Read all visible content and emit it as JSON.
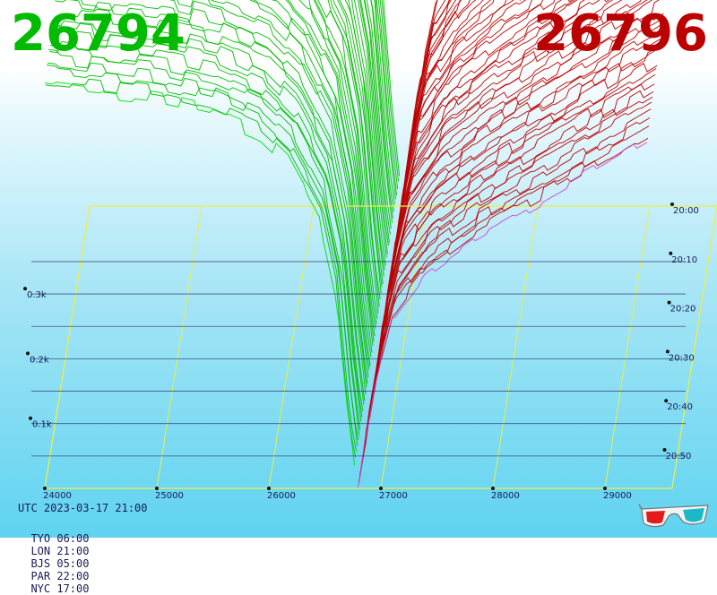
{
  "header": {
    "bid_price": "26794",
    "ask_price": "26796"
  },
  "colors": {
    "bid": "#00bb00",
    "ask": "#bb0000",
    "latest_bid_curve": "#00dd00",
    "latest_ask_curve": "#cc44cc",
    "frame": "#eeee44",
    "tick_text": "#1a1a55",
    "depth_grid": "#1a1a55"
  },
  "footer": {
    "utc": "UTC 2023-03-17 21:00",
    "cities": [
      "TYO 06:00",
      "LON 21:00",
      "BJS 05:00",
      "PAR 22:00",
      "NYC 17:00"
    ]
  },
  "icons": {
    "glasses": "3d-glasses-icon"
  },
  "chart_data": {
    "type": "area",
    "subtype": "3d-order-book-depth-waterfall",
    "title": "",
    "x_axis": {
      "label": "",
      "ticks": [
        "24000",
        "25000",
        "26000",
        "27000",
        "28000",
        "29000"
      ],
      "range": [
        24000,
        29600
      ]
    },
    "depth_axis": {
      "label": "",
      "ticks": [
        "0.1k",
        "0.2k",
        "0.3k"
      ],
      "range": [
        0,
        0.65
      ]
    },
    "time_axis": {
      "label": "",
      "ticks": [
        "20:00",
        "20:10",
        "20:20",
        "20:30",
        "20:40",
        "20:50"
      ],
      "range": [
        "20:00",
        "21:00"
      ]
    },
    "mid_price": 26795,
    "snapshots": 50,
    "bid_profile": {
      "price": [
        24000,
        24500,
        25000,
        25500,
        25900,
        26200,
        26450,
        26600,
        26700,
        26794
      ],
      "cum_depth_k": [
        0.62,
        0.61,
        0.6,
        0.58,
        0.55,
        0.5,
        0.42,
        0.3,
        0.12,
        0.0
      ]
    },
    "ask_profile": {
      "price": [
        26796,
        26850,
        26950,
        27100,
        27400,
        27800,
        28200,
        28600,
        29000,
        29400
      ],
      "cum_depth_k": [
        0.0,
        0.06,
        0.16,
        0.26,
        0.33,
        0.38,
        0.42,
        0.46,
        0.5,
        0.54
      ]
    }
  }
}
